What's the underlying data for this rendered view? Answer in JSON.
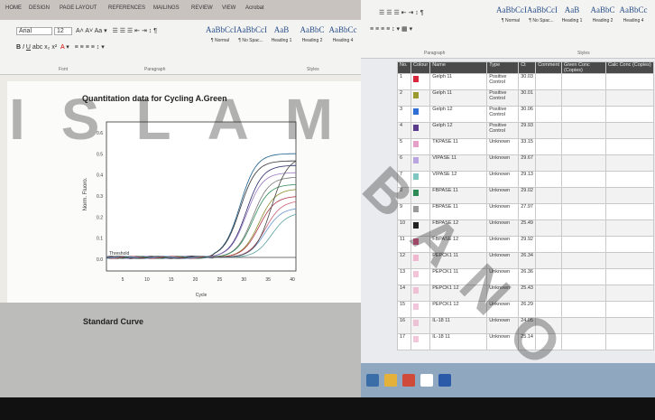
{
  "word_left": {
    "tabs": [
      "HOME",
      "DESIGN",
      "PAGE LAYOUT",
      "REFERENCES",
      "MAILINGS",
      "REVIEW",
      "VIEW",
      "Acrobat"
    ],
    "font": "Arial",
    "font_size": "12",
    "styles": [
      {
        "sample": "AaBbCcI",
        "name": "¶ Normal"
      },
      {
        "sample": "AaBbCcI",
        "name": "¶ No Spac..."
      },
      {
        "sample": "AaB",
        "name": "Heading 1"
      },
      {
        "sample": "AaBbC",
        "name": "Heading 2"
      },
      {
        "sample": "AaBbCc",
        "name": "Heading 4"
      }
    ],
    "groups": [
      "Font",
      "Paragraph",
      "Styles"
    ],
    "chart": {
      "title": "Quantitation data for Cycling A.Green",
      "y_label": "Norm. Fluoro.",
      "x_label": "Cycle",
      "threshold_label": "Threshold",
      "yticks": [
        "0.0",
        "0.1",
        "0.2",
        "0.3",
        "0.4",
        "0.5",
        "0.6"
      ],
      "xticks": [
        "5",
        "10",
        "15",
        "20",
        "25",
        "30",
        "35",
        "40"
      ]
    },
    "section": "Standard Curve"
  },
  "word_right": {
    "groups": [
      "Paragraph",
      "Styles"
    ],
    "styles": [
      {
        "sample": "AaBbCcI",
        "name": "¶ Normal"
      },
      {
        "sample": "AaBbCcI",
        "name": "¶ No Spac..."
      },
      {
        "sample": "AaB",
        "name": "Heading 1"
      },
      {
        "sample": "AaBbC",
        "name": "Heading 2"
      },
      {
        "sample": "AaBbCc",
        "name": "Heading 4"
      }
    ],
    "table": {
      "header": [
        "No.",
        "Colour",
        "Name",
        "Type",
        "Ct",
        "Comment",
        "Given Conc (Copies)",
        "Calc Conc (Copies)"
      ],
      "rows": [
        {
          "no": 1,
          "color": "#d8263a",
          "name": "Gelph 11",
          "type": "Positive Control",
          "ct": 30.03
        },
        {
          "no": 2,
          "color": "#9a9a2e",
          "name": "Gelph 11",
          "type": "Positive Control",
          "ct": 30.01
        },
        {
          "no": 3,
          "color": "#2f6fd6",
          "name": "Gelph 12",
          "type": "Positive Control",
          "ct": 30.06
        },
        {
          "no": 4,
          "color": "#5a3c8a",
          "name": "Gelph 12",
          "type": "Positive Control",
          "ct": 29.93
        },
        {
          "no": 5,
          "color": "#e6a0c8",
          "name": "TKPASE 11",
          "type": "Unknown",
          "ct": 33.15
        },
        {
          "no": 6,
          "color": "#b9a6e0",
          "name": "VIPASE 11",
          "type": "Unknown",
          "ct": 29.67
        },
        {
          "no": 7,
          "color": "#7fc6c0",
          "name": "VIPASE 12",
          "type": "Unknown",
          "ct": 29.13
        },
        {
          "no": 8,
          "color": "#2e8b57",
          "name": "FBPASE 11",
          "type": "Unknown",
          "ct": 29.02
        },
        {
          "no": 9,
          "color": "#9a9a9a",
          "name": "FBPASE 11",
          "type": "Unknown",
          "ct": 27.97
        },
        {
          "no": 10,
          "color": "#222222",
          "name": "FBPASE 12",
          "type": "Unknown",
          "ct": 25.49
        },
        {
          "no": 11,
          "color": "#e05a8a",
          "name": "FBPASE 12",
          "type": "Unknown",
          "ct": 29.92
        },
        {
          "no": 12,
          "color": "#f0b8d0",
          "name": "PEPCK1 11",
          "type": "Unknown",
          "ct": 26.34
        },
        {
          "no": 13,
          "color": "#f3c4d8",
          "name": "PEPCK1 11",
          "type": "Unknown",
          "ct": 26.36
        },
        {
          "no": 14,
          "color": "#efc0d4",
          "name": "PEPCK1 12",
          "type": "Unknown",
          "ct": 25.43
        },
        {
          "no": 15,
          "color": "#f1c6da",
          "name": "PEPCK1 12",
          "type": "Unknown",
          "ct": 26.29
        },
        {
          "no": 16,
          "color": "#eec2d6",
          "name": "IL-18 11",
          "type": "Unknown",
          "ct": 24.05
        },
        {
          "no": 17,
          "color": "#f0c8da",
          "name": "IL-18 11",
          "type": "Unknown",
          "ct": 25.14
        }
      ]
    }
  },
  "watermark": [
    "ISLAM",
    "BANO"
  ]
}
